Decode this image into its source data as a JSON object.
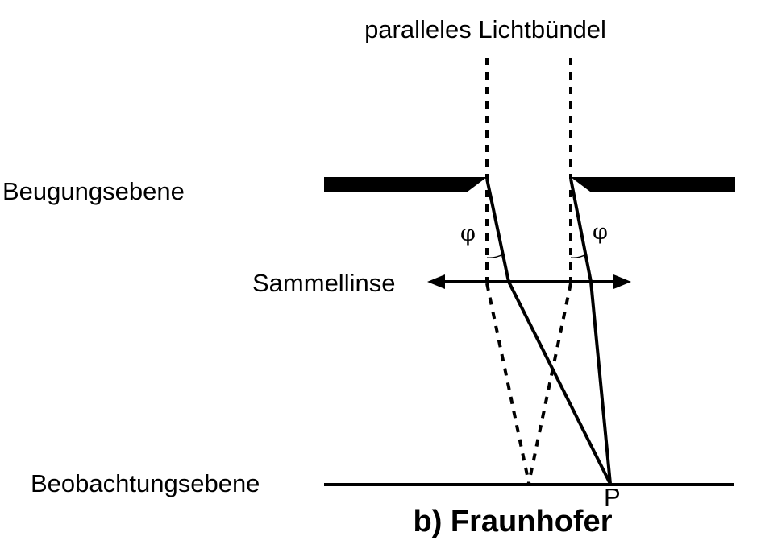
{
  "labels": {
    "incoming": "paralleles Lichtbündel",
    "diffraction_plane": "Beugungsebene",
    "lens": "Sammellinse",
    "observation_plane": "Beobachtungsebene",
    "point": "P",
    "angle_left": "φ",
    "angle_right": "φ",
    "caption": "b) Fraunhofer"
  }
}
